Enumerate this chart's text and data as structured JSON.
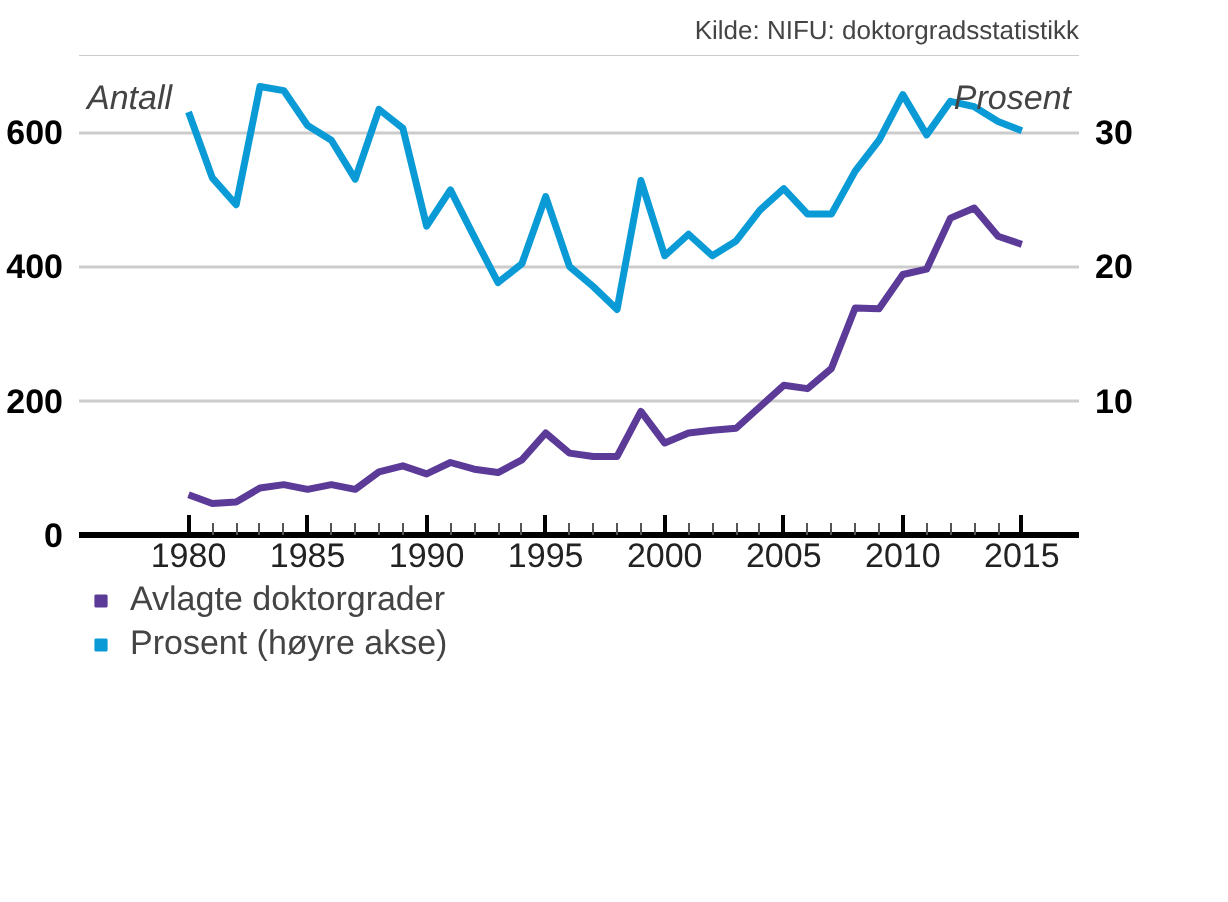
{
  "chart_data": {
    "type": "line",
    "x": [
      1980,
      1981,
      1982,
      1983,
      1984,
      1985,
      1986,
      1987,
      1988,
      1989,
      1990,
      1991,
      1992,
      1993,
      1994,
      1995,
      1996,
      1997,
      1998,
      1999,
      2000,
      2001,
      2002,
      2003,
      2004,
      2005,
      2006,
      2007,
      2008,
      2009,
      2010,
      2011,
      2012,
      2013,
      2014,
      2015
    ],
    "series": [
      {
        "name": "Avlagte doktorgrader",
        "color": "#5b3a98",
        "values": [
          60,
          47,
          49,
          70,
          75,
          68,
          75,
          68,
          94,
          103,
          91,
          108,
          98,
          93,
          112,
          152,
          122,
          117,
          117,
          184,
          137,
          152,
          156,
          159,
          191,
          223,
          218,
          248,
          338,
          337,
          388,
          396,
          472,
          487,
          445,
          433
        ]
      },
      {
        "name": "Prosent (høyre akse)",
        "color": "#0a9bd7",
        "axis": "y2",
        "values": [
          31.5,
          26.6,
          24.6,
          33.4,
          33.1,
          30.5,
          29.4,
          26.5,
          31.7,
          30.3,
          23.0,
          25.7,
          22.2,
          18.8,
          20.2,
          25.2,
          20.0,
          18.5,
          16.8,
          26.4,
          20.8,
          22.4,
          20.8,
          21.9,
          24.2,
          25.8,
          23.9,
          23.9,
          27.1,
          29.4,
          32.8,
          29.8,
          32.3,
          31.9,
          30.8,
          30.1
        ]
      }
    ],
    "ylabel": "Antall",
    "y2label": "Prosent",
    "annotations": [
      "Kilde: NIFU: doktorgradsstatistikk"
    ],
    "xlim": [
      1975.4,
      2017.4
    ],
    "xticks": [
      1980,
      {
        "value": 1981,
        "label": null
      },
      {
        "value": 1982,
        "label": null
      },
      {
        "value": 1983,
        "label": null
      },
      {
        "value": 1984,
        "label": null
      },
      1985,
      {
        "value": 1986,
        "label": null
      },
      {
        "value": 1987,
        "label": null
      },
      {
        "value": 1988,
        "label": null
      },
      {
        "value": 1989,
        "label": null
      },
      1990,
      {
        "value": 1991,
        "label": null
      },
      {
        "value": 1992,
        "label": null
      },
      {
        "value": 1993,
        "label": null
      },
      {
        "value": 1994,
        "label": null
      },
      1995,
      {
        "value": 1996,
        "label": null
      },
      {
        "value": 1997,
        "label": null
      },
      {
        "value": 1998,
        "label": null
      },
      {
        "value": 1999,
        "label": null
      },
      2000,
      {
        "value": 2001,
        "label": null
      },
      {
        "value": 2002,
        "label": null
      },
      {
        "value": 2003,
        "label": null
      },
      {
        "value": 2004,
        "label": null
      },
      2005,
      {
        "value": 2006,
        "label": null
      },
      {
        "value": 2007,
        "label": null
      },
      {
        "value": 2008,
        "label": null
      },
      {
        "value": 2009,
        "label": null
      },
      2010,
      {
        "value": 2011,
        "label": null
      },
      {
        "value": 2012,
        "label": null
      },
      {
        "value": 2013,
        "label": null
      },
      {
        "value": 2014,
        "label": null
      },
      2015
    ],
    "ylim": [
      0,
      715
    ],
    "yticks": [
      0,
      200,
      400,
      600
    ],
    "y2lim": [
      0,
      35.75
    ],
    "y2ticks": [
      10,
      20,
      30
    ],
    "grid": "y",
    "legend": "bottom left",
    "marker": "none",
    "line_style": "solid"
  }
}
